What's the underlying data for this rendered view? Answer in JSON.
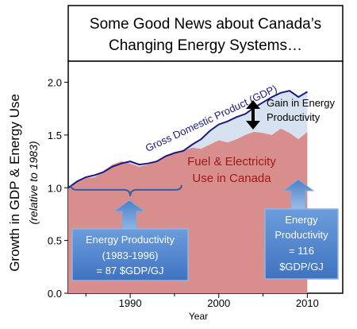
{
  "chart_data": {
    "type": "area",
    "title_lines": [
      "Some Good News about Canada’s",
      "Changing Energy Systems…"
    ],
    "xlabel": "Year",
    "ylabel": "Growth in GDP & Energy Use",
    "ylabel_sub": "(relative to 1983)",
    "xlim": [
      1983,
      2014
    ],
    "ylim": [
      0,
      2.2
    ],
    "xticks": [
      1990,
      2000,
      2010
    ],
    "yticks": [
      0.0,
      0.5,
      1.0,
      1.5,
      2.0
    ],
    "series": [
      {
        "name": "Gross Domestic Product (GDP)",
        "x": [
          1983,
          1984,
          1985,
          1986,
          1987,
          1988,
          1989,
          1990,
          1991,
          1992,
          1993,
          1994,
          1995,
          1996,
          1997,
          1998,
          1999,
          2000,
          2001,
          2002,
          2003,
          2004,
          2005,
          2006,
          2007,
          2008,
          2009,
          2010
        ],
        "values": [
          1.0,
          1.06,
          1.1,
          1.12,
          1.15,
          1.2,
          1.23,
          1.25,
          1.22,
          1.23,
          1.25,
          1.3,
          1.33,
          1.35,
          1.41,
          1.46,
          1.54,
          1.6,
          1.63,
          1.67,
          1.7,
          1.76,
          1.81,
          1.86,
          1.9,
          1.92,
          1.86,
          1.91
        ],
        "color": "#1a1a80"
      },
      {
        "name": "Fuel & Electricity Use in Canada",
        "x": [
          1983,
          1984,
          1985,
          1986,
          1987,
          1988,
          1989,
          1990,
          1991,
          1992,
          1993,
          1994,
          1995,
          1996,
          1997,
          1998,
          1999,
          2000,
          2001,
          2002,
          2003,
          2004,
          2005,
          2006,
          2007,
          2008,
          2009,
          2010
        ],
        "values": [
          1.0,
          1.05,
          1.09,
          1.1,
          1.16,
          1.22,
          1.25,
          1.23,
          1.2,
          1.22,
          1.25,
          1.3,
          1.33,
          1.35,
          1.38,
          1.37,
          1.41,
          1.45,
          1.43,
          1.46,
          1.5,
          1.53,
          1.52,
          1.5,
          1.56,
          1.52,
          1.46,
          1.53
        ],
        "color": "#d98e8e"
      }
    ],
    "labels": {
      "gdp": "Gross Domestic Product (GDP)",
      "gain_line1": "Gain in Energy",
      "gain_line2": "Productivity",
      "fuel_line1": "Fuel & Electricity",
      "fuel_line2": "Use in Canada"
    },
    "callouts": [
      {
        "lines": [
          "Energy Productivity",
          "(1983-1996)",
          "= 87 $GDP/GJ"
        ]
      },
      {
        "lines": [
          "Energy",
          "Productivity",
          "= 116",
          "$GDP/GJ"
        ]
      }
    ],
    "colors": {
      "gdp_line": "#1a1a80",
      "gain_fill": "#d6e2f0",
      "energy_fill": "#d98e8e",
      "callout_fill": "#5b8fd4",
      "brace": "#2f5fa8",
      "annotation_text": "#a01818"
    }
  }
}
